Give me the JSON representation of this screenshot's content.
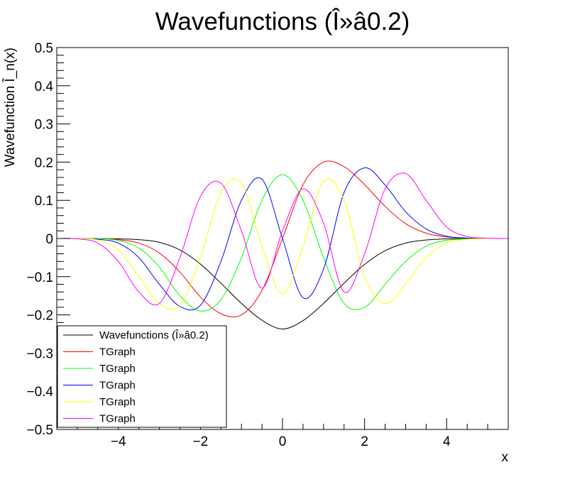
{
  "chart_data": {
    "type": "line",
    "title": "Wavefunctions (Î»â0.2)",
    "xlabel": "x",
    "ylabel": "Wavefunction Î_n(x)",
    "xlim": [
      -5.5,
      5.5
    ],
    "ylim": [
      -0.5,
      0.5
    ],
    "x_ticks": [
      -4,
      -2,
      0,
      2,
      4
    ],
    "x_tick_labels": [
      "−4",
      "−2",
      "0",
      "2",
      "4"
    ],
    "y_ticks": [
      -0.5,
      -0.4,
      -0.3,
      -0.2,
      -0.1,
      0,
      0.1,
      0.2,
      0.3,
      0.4,
      0.5
    ],
    "y_tick_labels": [
      "−0.5",
      "−0.4",
      "−0.3",
      "−0.2",
      "−0.1",
      "0",
      "0.1",
      "0.2",
      "0.3",
      "0.4",
      "0.5"
    ],
    "grid": false,
    "legend_position": "bottom-left",
    "series": [
      {
        "name": "Wavefunctions (Î»â0.2)",
        "color": "#000000",
        "x": [
          -5.5,
          -5,
          -4.5,
          -4,
          -3.5,
          -3,
          -2.5,
          -2,
          -1.5,
          -1,
          -0.5,
          0,
          0.5,
          1,
          1.5,
          2,
          2.5,
          3,
          3.5,
          4,
          4.5,
          5,
          5.5
        ],
        "y": [
          0,
          0,
          0,
          -0.001,
          -0.003,
          -0.01,
          -0.03,
          -0.067,
          -0.117,
          -0.17,
          -0.214,
          -0.237,
          -0.215,
          -0.17,
          -0.117,
          -0.068,
          -0.032,
          -0.012,
          -0.004,
          -0.001,
          0,
          0,
          0
        ]
      },
      {
        "name": "TGraph",
        "color": "#ff0000",
        "x": [
          -5.5,
          -5,
          -4.5,
          -4,
          -3.5,
          -3,
          -2.5,
          -2,
          -1.5,
          -1,
          -0.5,
          0,
          0.5,
          1,
          1.5,
          2,
          2.5,
          3,
          3.5,
          4,
          4.5,
          5,
          5.5
        ],
        "y": [
          0,
          0,
          0,
          -0.003,
          -0.012,
          -0.038,
          -0.088,
          -0.153,
          -0.197,
          -0.2,
          -0.136,
          0,
          0.141,
          0.2,
          0.188,
          0.141,
          0.084,
          0.039,
          0.014,
          0.004,
          0.001,
          0,
          0
        ]
      },
      {
        "name": "TGraph",
        "color": "#00ff00",
        "x": [
          -5.5,
          -5,
          -4.5,
          -4,
          -3.5,
          -3,
          -2.5,
          -2,
          -1.5,
          -1,
          -0.5,
          0,
          0.5,
          1,
          1.5,
          2,
          2.5,
          3,
          3.5,
          4,
          4.5,
          5,
          5.5
        ],
        "y": [
          0,
          0,
          0,
          -0.005,
          -0.025,
          -0.075,
          -0.15,
          -0.19,
          -0.16,
          -0.05,
          0.1,
          0.167,
          0.1,
          -0.05,
          -0.17,
          -0.18,
          -0.12,
          -0.06,
          -0.02,
          -0.005,
          -0.001,
          0,
          0
        ]
      },
      {
        "name": "TGraph",
        "color": "#0000ff",
        "x": [
          -5.5,
          -5,
          -4.5,
          -4,
          -3.5,
          -3,
          -2.5,
          -2,
          -1.5,
          -1,
          -0.5,
          0,
          0.5,
          1,
          1.5,
          2,
          2.5,
          3,
          3.5,
          4,
          4.5,
          5,
          5.5
        ],
        "y": [
          0,
          0,
          -0.002,
          -0.012,
          -0.05,
          -0.12,
          -0.178,
          -0.175,
          -0.06,
          0.1,
          0.155,
          0,
          -0.155,
          -0.08,
          0.12,
          0.185,
          0.14,
          0.07,
          0.025,
          0.006,
          0.001,
          0,
          0
        ]
      },
      {
        "name": "TGraph",
        "color": "#ffff00",
        "x": [
          -5.5,
          -5,
          -4.5,
          -4,
          -3.5,
          -3,
          -2.5,
          -2,
          -1.5,
          -1,
          -0.5,
          0,
          0.5,
          1,
          1.5,
          2,
          2.5,
          3,
          3.5,
          4,
          4.5,
          5,
          5.5
        ],
        "y": [
          0,
          0,
          -0.004,
          -0.03,
          -0.1,
          -0.17,
          -0.175,
          -0.05,
          0.12,
          0.145,
          -0.02,
          -0.145,
          -0.02,
          0.15,
          0.1,
          -0.1,
          -0.17,
          -0.12,
          -0.05,
          -0.012,
          -0.002,
          0,
          0
        ]
      },
      {
        "name": "TGraph",
        "color": "#ff00ff",
        "x": [
          -5.5,
          -5,
          -4.5,
          -4,
          -3.5,
          -3,
          -2.5,
          -2,
          -1.5,
          -1,
          -0.5,
          0,
          0.5,
          1,
          1.5,
          2,
          2.5,
          3,
          3.5,
          4,
          4.5,
          5,
          5.5
        ],
        "y": [
          0,
          -0.001,
          -0.012,
          -0.06,
          -0.14,
          -0.17,
          -0.05,
          0.11,
          0.145,
          0.02,
          -0.13,
          0.02,
          0.13,
          0.04,
          -0.14,
          -0.04,
          0.13,
          0.17,
          0.1,
          0.03,
          0.005,
          0.001,
          0
        ]
      }
    ]
  }
}
